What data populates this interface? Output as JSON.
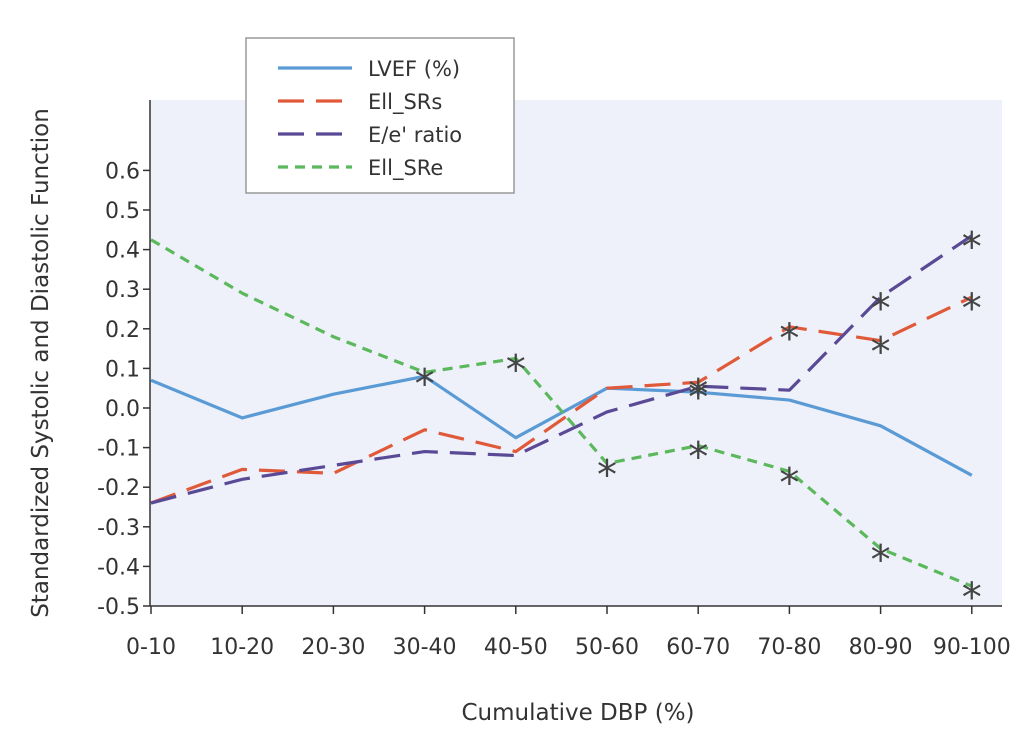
{
  "chart_data": {
    "type": "line",
    "xlabel": "Cumulative DBP (%)",
    "ylabel": "Standardized Systolic and Diastolic Function",
    "categories": [
      "0-10",
      "10-20",
      "20-30",
      "30-40",
      "40-50",
      "50-60",
      "60-70",
      "70-80",
      "80-90",
      "90-100"
    ],
    "ylim": [
      -0.5,
      0.75
    ],
    "yticks": [
      -0.5,
      -0.4,
      -0.3,
      -0.2,
      -0.1,
      0.0,
      0.1,
      0.2,
      0.3,
      0.4,
      0.5,
      0.6
    ],
    "ytick_labels": [
      "-0.5",
      "-0.4",
      "-0.3",
      "-0.2",
      "-0.1",
      "0.0",
      "0.1",
      "0.2",
      "0.3",
      "0.4",
      "0.5",
      "0.6"
    ],
    "grid": false,
    "background_color": "#eef1fa",
    "legend_position": "top-left",
    "marker_symbol": "*",
    "series": [
      {
        "name": "LVEF (%)",
        "color": "#5b9bd5",
        "dash": "solid",
        "values": [
          0.07,
          -0.025,
          0.035,
          0.08,
          -0.075,
          0.05,
          0.04,
          0.02,
          -0.045,
          -0.17
        ],
        "significant": [
          false,
          false,
          false,
          false,
          false,
          false,
          false,
          false,
          false,
          false
        ]
      },
      {
        "name": "Ell_SRs",
        "color": "#e05a3a",
        "dash": "long",
        "values": [
          -0.24,
          -0.155,
          -0.165,
          -0.055,
          -0.11,
          0.05,
          0.065,
          0.205,
          0.17,
          0.28
        ],
        "significant": [
          false,
          false,
          false,
          false,
          false,
          false,
          true,
          true,
          true,
          true
        ]
      },
      {
        "name": "E/e' ratio",
        "color": "#5a4a96",
        "dash": "long",
        "values": [
          -0.24,
          -0.18,
          -0.145,
          -0.11,
          -0.12,
          -0.01,
          0.055,
          0.045,
          0.28,
          0.435
        ],
        "significant": [
          false,
          false,
          false,
          false,
          false,
          false,
          true,
          false,
          true,
          true
        ]
      },
      {
        "name": "Ell_SRe",
        "color": "#5cb85c",
        "dash": "short",
        "values": [
          0.425,
          0.29,
          0.18,
          0.09,
          0.125,
          -0.14,
          -0.095,
          -0.16,
          -0.355,
          -0.45
        ],
        "significant": [
          false,
          false,
          false,
          true,
          true,
          true,
          true,
          true,
          true,
          true
        ]
      }
    ]
  }
}
